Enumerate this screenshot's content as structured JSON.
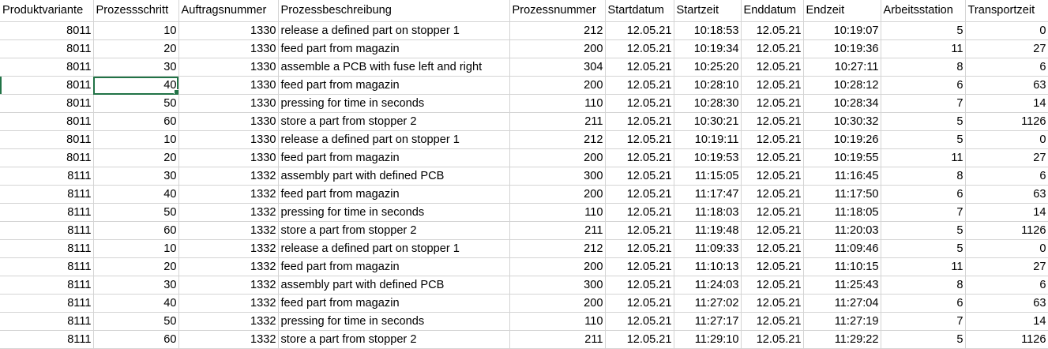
{
  "sheet": {
    "headers": [
      "Produktvariante",
      "Prozessschritt",
      "Auftragsnummer",
      "Prozessbeschreibung",
      "Prozessnummer",
      "Startdatum",
      "Startzeit",
      "Enddatum",
      "Endzeit",
      "Arbeitsstation",
      "Transportzeit"
    ],
    "rows": [
      [
        "8011",
        "10",
        "1330",
        "release a defined part on stopper 1",
        "212",
        "12.05.21",
        "10:18:53",
        "12.05.21",
        "10:19:07",
        "5",
        "0"
      ],
      [
        "8011",
        "20",
        "1330",
        "feed part from magazin",
        "200",
        "12.05.21",
        "10:19:34",
        "12.05.21",
        "10:19:36",
        "11",
        "27"
      ],
      [
        "8011",
        "30",
        "1330",
        "assemble a PCB with fuse left and right",
        "304",
        "12.05.21",
        "10:25:20",
        "12.05.21",
        "10:27:11",
        "8",
        "6"
      ],
      [
        "8011",
        "40",
        "1330",
        "feed part from magazin",
        "200",
        "12.05.21",
        "10:28:10",
        "12.05.21",
        "10:28:12",
        "6",
        "63"
      ],
      [
        "8011",
        "50",
        "1330",
        "pressing for time in seconds",
        "110",
        "12.05.21",
        "10:28:30",
        "12.05.21",
        "10:28:34",
        "7",
        "14"
      ],
      [
        "8011",
        "60",
        "1330",
        "store a part from stopper 2",
        "211",
        "12.05.21",
        "10:30:21",
        "12.05.21",
        "10:30:32",
        "5",
        "1126"
      ],
      [
        "8011",
        "10",
        "1330",
        "release a defined part on stopper 1",
        "212",
        "12.05.21",
        "10:19:11",
        "12.05.21",
        "10:19:26",
        "5",
        "0"
      ],
      [
        "8011",
        "20",
        "1330",
        "feed part from magazin",
        "200",
        "12.05.21",
        "10:19:53",
        "12.05.21",
        "10:19:55",
        "11",
        "27"
      ],
      [
        "8111",
        "30",
        "1332",
        "assembly part with defined PCB",
        "300",
        "12.05.21",
        "11:15:05",
        "12.05.21",
        "11:16:45",
        "8",
        "6"
      ],
      [
        "8111",
        "40",
        "1332",
        "feed part from magazin",
        "200",
        "12.05.21",
        "11:17:47",
        "12.05.21",
        "11:17:50",
        "6",
        "63"
      ],
      [
        "8111",
        "50",
        "1332",
        "pressing for time in seconds",
        "110",
        "12.05.21",
        "11:18:03",
        "12.05.21",
        "11:18:05",
        "7",
        "14"
      ],
      [
        "8111",
        "60",
        "1332",
        "store a part from stopper 2",
        "211",
        "12.05.21",
        "11:19:48",
        "12.05.21",
        "11:20:03",
        "5",
        "1126"
      ],
      [
        "8111",
        "10",
        "1332",
        "release a defined part on stopper 1",
        "212",
        "12.05.21",
        "11:09:33",
        "12.05.21",
        "11:09:46",
        "5",
        "0"
      ],
      [
        "8111",
        "20",
        "1332",
        "feed part from magazin",
        "200",
        "12.05.21",
        "11:10:13",
        "12.05.21",
        "11:10:15",
        "11",
        "27"
      ],
      [
        "8111",
        "30",
        "1332",
        "assembly part with defined PCB",
        "300",
        "12.05.21",
        "11:24:03",
        "12.05.21",
        "11:25:43",
        "8",
        "6"
      ],
      [
        "8111",
        "40",
        "1332",
        "feed part from magazin",
        "200",
        "12.05.21",
        "11:27:02",
        "12.05.21",
        "11:27:04",
        "6",
        "63"
      ],
      [
        "8111",
        "50",
        "1332",
        "pressing for time in seconds",
        "110",
        "12.05.21",
        "11:27:17",
        "12.05.21",
        "11:27:19",
        "7",
        "14"
      ],
      [
        "8111",
        "60",
        "1332",
        "store a part from stopper 2",
        "211",
        "12.05.21",
        "11:29:10",
        "12.05.21",
        "11:29:22",
        "5",
        "1126"
      ]
    ],
    "selected_cell": {
      "row": 3,
      "col": 1
    },
    "accent_color": "#217346",
    "gridline_color": "#d4d4d4"
  }
}
